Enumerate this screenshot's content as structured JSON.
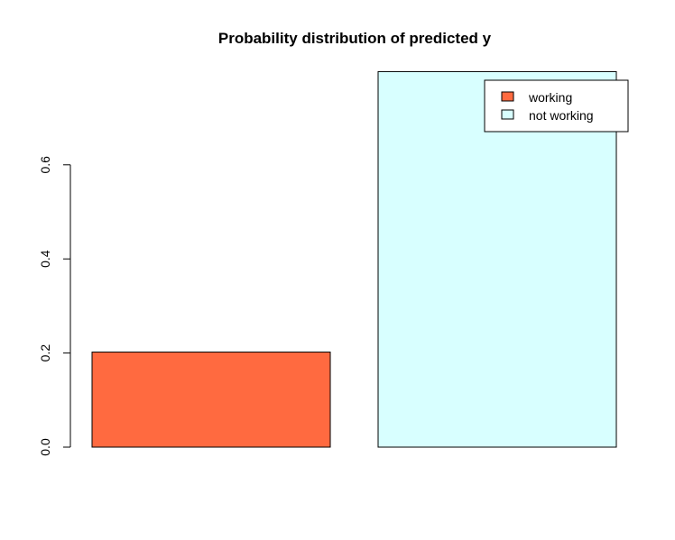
{
  "chart_data": {
    "type": "bar",
    "title": "Probability distribution of predicted y",
    "xlabel": "",
    "ylabel": "",
    "categories": [
      "working",
      "not working"
    ],
    "values": [
      0.202,
      0.798
    ],
    "colors": [
      "#FF6A40",
      "#D8FFFF"
    ],
    "ylim": [
      0,
      0.8
    ],
    "yticks": [
      0.0,
      0.2,
      0.4,
      0.6
    ],
    "ytick_labels": [
      "0.0",
      "0.2",
      "0.4",
      "0.6"
    ],
    "grid": false,
    "legend": {
      "placement": "top-right",
      "entries": [
        "working",
        "not working"
      ]
    }
  }
}
